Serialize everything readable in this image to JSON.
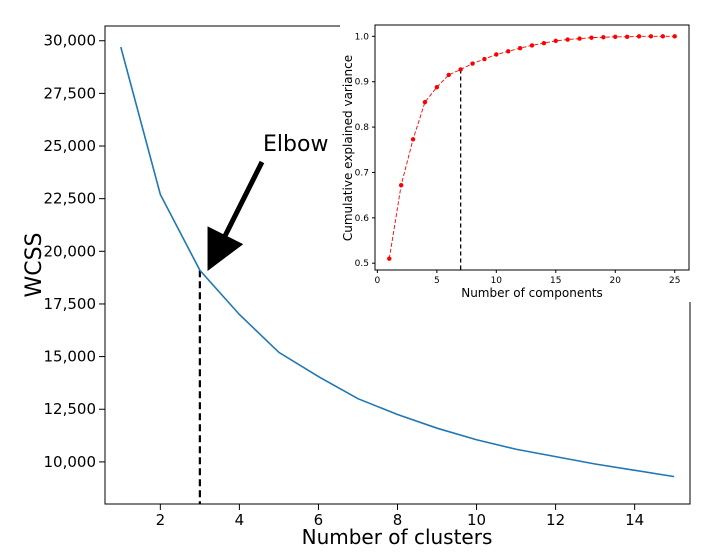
{
  "chart_data": [
    {
      "type": "line",
      "xlabel": "Number of clusters",
      "ylabel": "WCSS",
      "xlim": [
        0.6,
        15.4
      ],
      "ylim": [
        8000,
        30700
      ],
      "xticks": [
        2,
        4,
        6,
        8,
        10,
        12,
        14
      ],
      "yticks": [
        10000,
        12500,
        15000,
        17500,
        20000,
        22500,
        25000,
        27500,
        30000
      ],
      "ytick_labels": [
        "10,000",
        "12,500",
        "15,000",
        "17,500",
        "20,000",
        "22,500",
        "25,000",
        "27,500",
        "30,000"
      ],
      "series": [
        {
          "color": "#1f77b4",
          "x": [
            1,
            2,
            3,
            4,
            5,
            6,
            7,
            8,
            9,
            10,
            11,
            12,
            13,
            14,
            15
          ],
          "y": [
            29700,
            22700,
            19100,
            17000,
            15200,
            14050,
            13000,
            12250,
            11600,
            11050,
            10600,
            10250,
            9900,
            9600,
            9300
          ]
        }
      ],
      "marker_line": {
        "x": 3,
        "y": 19100,
        "style": "dashed",
        "color": "#000000"
      },
      "annotation": {
        "text": "Elbow",
        "points_to": {
          "x": 3,
          "y": 19100
        }
      }
    },
    {
      "type": "line",
      "xlabel": "Number of components",
      "ylabel": "Cumulative explained variance",
      "xlim": [
        -0.2,
        26.2
      ],
      "ylim": [
        0.485,
        1.025
      ],
      "xticks": [
        0,
        5,
        10,
        15,
        20,
        25
      ],
      "yticks": [
        0.5,
        0.6,
        0.7,
        0.8,
        0.9,
        1.0
      ],
      "ytick_labels": [
        "0.5",
        "0.6",
        "0.7",
        "0.8",
        "0.9",
        "1.0"
      ],
      "series": [
        {
          "color": "#ff0000",
          "style": "dashed",
          "marker": "circle",
          "x": [
            1,
            2,
            3,
            4,
            5,
            6,
            7,
            8,
            9,
            10,
            11,
            12,
            13,
            14,
            15,
            16,
            17,
            18,
            19,
            20,
            21,
            22,
            23,
            24,
            25
          ],
          "y": [
            0.51,
            0.672,
            0.773,
            0.855,
            0.888,
            0.915,
            0.927,
            0.94,
            0.95,
            0.96,
            0.967,
            0.974,
            0.98,
            0.985,
            0.99,
            0.993,
            0.995,
            0.997,
            0.998,
            0.999,
            0.999,
            1.0,
            1.0,
            1.0,
            1.0
          ]
        }
      ],
      "marker_line": {
        "x": 7,
        "y": 0.927,
        "style": "dashed",
        "color": "#000000"
      }
    }
  ]
}
